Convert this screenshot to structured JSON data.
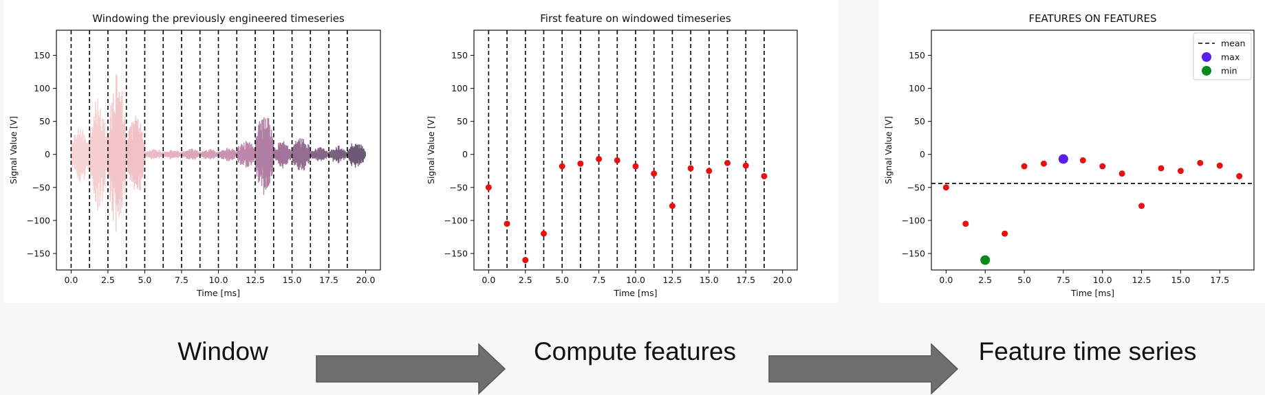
{
  "charts_meta": {
    "xlabel": "Time [ms]",
    "ylabel": "Signal Value [V]"
  },
  "chart_data": [
    {
      "type": "line",
      "title": "Windowing the previously engineered timeseries",
      "xlabel": "Time [ms]",
      "ylabel": "Signal Value [V]",
      "xlim": [
        -1.0,
        21.0
      ],
      "ylim": [
        -175,
        188
      ],
      "xticks": [
        0.0,
        2.5,
        5.0,
        7.5,
        10.0,
        12.5,
        15.0,
        17.5,
        20.0
      ],
      "xtick_labels": [
        "0.0",
        "2.5",
        "5.0",
        "7.5",
        "10.0",
        "12.5",
        "15.0",
        "17.5",
        "20.0"
      ],
      "yticks": [
        150,
        100,
        50,
        0,
        -50,
        -100,
        -150
      ],
      "ytick_labels": [
        "150",
        "100",
        "50",
        "0",
        "−50",
        "−100",
        "−150"
      ],
      "window_boundaries": [
        0.0,
        1.25,
        2.5,
        3.75,
        5.0,
        6.25,
        7.5,
        8.75,
        10.0,
        11.25,
        12.5,
        13.75,
        15.0,
        16.25,
        17.5,
        18.75
      ],
      "signal_bursts": [
        {
          "start": 0.0,
          "end": 1.25,
          "amp": 48,
          "color": "#f6d5d3"
        },
        {
          "start": 1.25,
          "end": 2.5,
          "amp": 95,
          "color": "#f5cfcf"
        },
        {
          "start": 2.5,
          "end": 3.75,
          "amp": 128,
          "color": "#f3c6c9"
        },
        {
          "start": 3.75,
          "end": 5.0,
          "amp": 70,
          "color": "#f0c0c6"
        },
        {
          "start": 5.0,
          "end": 6.25,
          "amp": 9,
          "color": "#ecbac4"
        },
        {
          "start": 6.25,
          "end": 7.5,
          "amp": 8,
          "color": "#e6b0c0"
        },
        {
          "start": 7.5,
          "end": 8.75,
          "amp": 10,
          "color": "#dca5bb"
        },
        {
          "start": 8.75,
          "end": 10.0,
          "amp": 9,
          "color": "#d49cb7"
        },
        {
          "start": 10.0,
          "end": 11.25,
          "amp": 12,
          "color": "#c891b1"
        },
        {
          "start": 11.25,
          "end": 12.5,
          "amp": 24,
          "color": "#bd86aa"
        },
        {
          "start": 12.5,
          "end": 13.75,
          "amp": 70,
          "color": "#b17ea3"
        },
        {
          "start": 13.75,
          "end": 15.0,
          "amp": 22,
          "color": "#a2749a"
        },
        {
          "start": 15.0,
          "end": 16.25,
          "amp": 30,
          "color": "#946d92"
        },
        {
          "start": 16.25,
          "end": 17.5,
          "amp": 12,
          "color": "#876689"
        },
        {
          "start": 17.5,
          "end": 18.75,
          "amp": 14,
          "color": "#7a5f7f"
        },
        {
          "start": 18.75,
          "end": 20.0,
          "amp": 22,
          "color": "#6e5876"
        }
      ]
    },
    {
      "type": "scatter",
      "title": "First feature on windowed timeseries",
      "xlabel": "Time [ms]",
      "ylabel": "Signal Value [V]",
      "xlim": [
        -1.0,
        21.0
      ],
      "ylim": [
        -175,
        188
      ],
      "xticks": [
        0.0,
        2.5,
        5.0,
        7.5,
        10.0,
        12.5,
        15.0,
        17.5,
        20.0
      ],
      "xtick_labels": [
        "0.0",
        "2.5",
        "5.0",
        "7.5",
        "10.0",
        "12.5",
        "15.0",
        "17.5",
        "20.0"
      ],
      "yticks": [
        150,
        100,
        50,
        0,
        -50,
        -100,
        -150
      ],
      "ytick_labels": [
        "150",
        "100",
        "50",
        "0",
        "−50",
        "−100",
        "−150"
      ],
      "window_boundaries": [
        0.0,
        1.25,
        2.5,
        3.75,
        5.0,
        6.25,
        7.5,
        8.75,
        10.0,
        11.25,
        12.5,
        13.75,
        15.0,
        16.25,
        17.5,
        18.75
      ],
      "x": [
        0.0,
        1.25,
        2.5,
        3.75,
        5.0,
        6.25,
        7.5,
        8.75,
        10.0,
        11.25,
        12.5,
        13.75,
        15.0,
        16.25,
        17.5,
        18.75
      ],
      "y": [
        -50,
        -105,
        -160,
        -120,
        -18,
        -14,
        -7,
        -9,
        -18,
        -29,
        -78,
        -21,
        -25,
        -13,
        -17,
        -33
      ],
      "point_color": "#e81010"
    },
    {
      "type": "scatter",
      "title": "FEATURES ON FEATURES",
      "xlabel": "Time [ms]",
      "ylabel": "Signal Value [V]",
      "xlim": [
        -0.94,
        19.69
      ],
      "ylim": [
        -175,
        188
      ],
      "xticks": [
        0.0,
        2.5,
        5.0,
        7.5,
        10.0,
        12.5,
        15.0,
        17.5
      ],
      "xtick_labels": [
        "0.0",
        "2.5",
        "5.0",
        "7.5",
        "10.0",
        "12.5",
        "15.0",
        "17.5"
      ],
      "yticks": [
        150,
        100,
        50,
        0,
        -50,
        -100,
        -150
      ],
      "ytick_labels": [
        "150",
        "100",
        "50",
        "0",
        "−50",
        "−100",
        "−150"
      ],
      "x": [
        0.0,
        1.25,
        2.5,
        3.75,
        5.0,
        6.25,
        7.5,
        8.75,
        10.0,
        11.25,
        12.5,
        13.75,
        15.0,
        16.25,
        17.5,
        18.75
      ],
      "y": [
        -50,
        -105,
        -160,
        -120,
        -18,
        -14,
        -7,
        -9,
        -18,
        -29,
        -78,
        -21,
        -25,
        -13,
        -17,
        -33
      ],
      "mean": -44,
      "max_point": {
        "x": 7.5,
        "y": -7
      },
      "min_point": {
        "x": 2.5,
        "y": -160
      },
      "legend": [
        {
          "label": "mean",
          "kind": "dashed-line",
          "color": "#000000"
        },
        {
          "label": "max",
          "kind": "dot",
          "color": "#5b1cf0"
        },
        {
          "label": "min",
          "kind": "dot",
          "color": "#0a8a1a"
        }
      ],
      "legend_position": "top-right",
      "point_color": "#e81010"
    }
  ],
  "flow": {
    "step1": "Window",
    "step2": "Compute features",
    "step3": "Feature time series",
    "arrow_color": "#6f6f6f"
  }
}
